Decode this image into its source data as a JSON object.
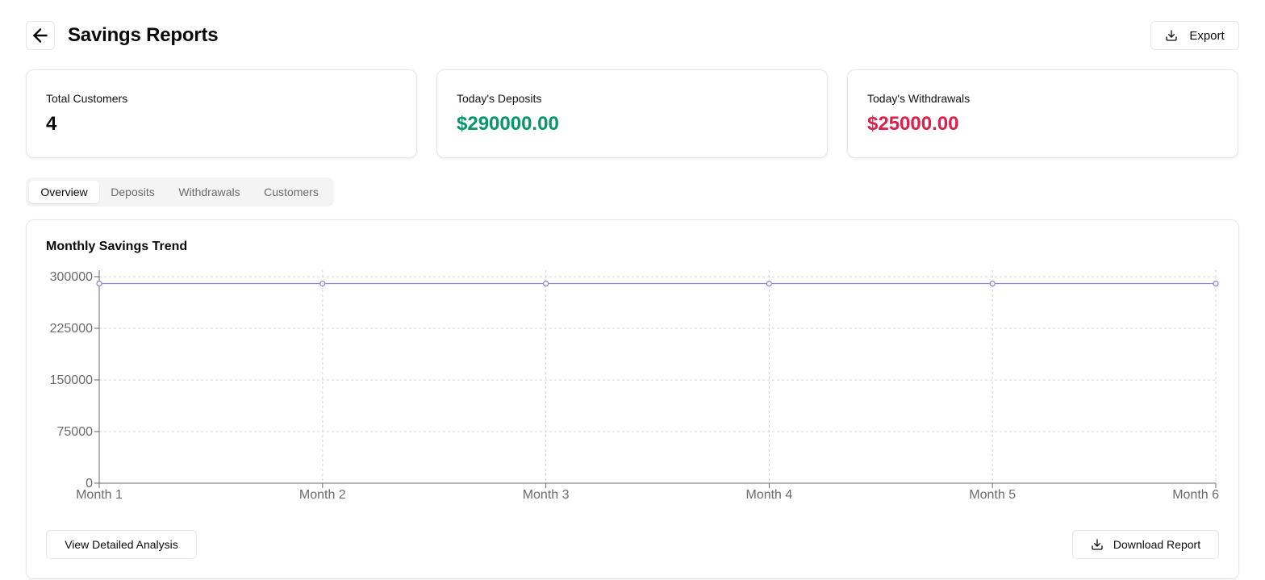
{
  "header": {
    "title": "Savings Reports",
    "export_label": "Export"
  },
  "cards": [
    {
      "label": "Total Customers",
      "value": "4",
      "color": "#0a0a0a"
    },
    {
      "label": "Today's Deposits",
      "value": "$290000.00",
      "color": "#059669"
    },
    {
      "label": "Today's Withdrawals",
      "value": "$25000.00",
      "color": "#e11d48"
    }
  ],
  "tabs": [
    {
      "label": "Overview",
      "active": true
    },
    {
      "label": "Deposits",
      "active": false
    },
    {
      "label": "Withdrawals",
      "active": false
    },
    {
      "label": "Customers",
      "active": false
    }
  ],
  "chart": {
    "title": "Monthly Savings Trend"
  },
  "chart_data": {
    "type": "line",
    "title": "Monthly Savings Trend",
    "x": [
      "Month 1",
      "Month 2",
      "Month 3",
      "Month 4",
      "Month 5",
      "Month 6"
    ],
    "y_ticks": [
      0,
      75000,
      150000,
      225000,
      300000
    ],
    "ylim": [
      0,
      300000
    ],
    "series": [
      {
        "values": [
          290000,
          290000,
          290000,
          290000,
          290000,
          290000
        ],
        "color": "#8b85d6"
      }
    ],
    "grid": true,
    "legend": "none"
  },
  "actions": {
    "detail_label": "View Detailed Analysis",
    "download_label": "Download Report"
  }
}
